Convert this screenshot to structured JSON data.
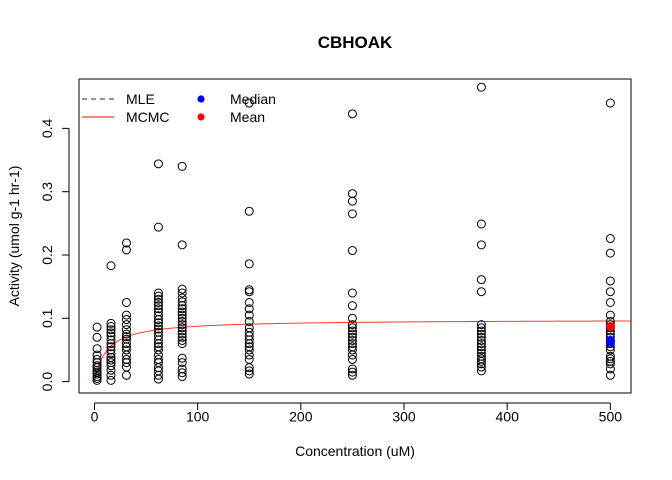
{
  "chart_data": {
    "type": "scatter",
    "title": "CBHOAK",
    "xlabel": "Concentration (uM)",
    "ylabel": "Activity (umol g-1 hr-1)",
    "xlim": [
      -15,
      520
    ],
    "ylim": [
      -0.018,
      0.478
    ],
    "x_ticks": [
      0,
      100,
      200,
      300,
      400,
      500
    ],
    "y_ticks": [
      0.0,
      0.1,
      0.2,
      0.3,
      0.4
    ],
    "x_tick_labels": [
      "0",
      "100",
      "200",
      "300",
      "400",
      "500"
    ],
    "y_tick_labels": [
      "0.0",
      "0.1",
      "0.2",
      "0.3",
      "0.4"
    ],
    "grid": false,
    "legend": {
      "position": "top-left",
      "entries": [
        {
          "label": "MLE",
          "symbol": "dashed-line",
          "color": "#555555"
        },
        {
          "label": "MCMC",
          "symbol": "line",
          "color": "#ff3b30"
        },
        {
          "label": "Median",
          "symbol": "filled-circle",
          "color": "#0000ff"
        },
        {
          "label": "Mean",
          "symbol": "filled-circle",
          "color": "#ff0000"
        }
      ]
    },
    "observations": [
      {
        "x": 2.5,
        "y": [
          0.002,
          0.005,
          0.008,
          0.012,
          0.015,
          0.018,
          0.022,
          0.025,
          0.03,
          0.035,
          0.042,
          0.052,
          0.07,
          0.086
        ]
      },
      {
        "x": 16,
        "y": [
          0.002,
          0.01,
          0.018,
          0.025,
          0.03,
          0.034,
          0.038,
          0.044,
          0.05,
          0.055,
          0.06,
          0.066,
          0.072,
          0.077,
          0.082,
          0.087,
          0.092,
          0.183
        ]
      },
      {
        "x": 31,
        "y": [
          0.01,
          0.023,
          0.03,
          0.035,
          0.042,
          0.05,
          0.055,
          0.06,
          0.067,
          0.071,
          0.075,
          0.082,
          0.09,
          0.098,
          0.105,
          0.125,
          0.208,
          0.219
        ]
      },
      {
        "x": 62,
        "y": [
          0.004,
          0.01,
          0.017,
          0.022,
          0.03,
          0.035,
          0.042,
          0.05,
          0.055,
          0.06,
          0.066,
          0.072,
          0.078,
          0.083,
          0.088,
          0.093,
          0.098,
          0.104,
          0.11,
          0.115,
          0.12,
          0.125,
          0.13,
          0.135,
          0.14,
          0.244,
          0.344
        ]
      },
      {
        "x": 85,
        "y": [
          0.008,
          0.014,
          0.02,
          0.03,
          0.037,
          0.06,
          0.065,
          0.07,
          0.075,
          0.08,
          0.085,
          0.09,
          0.095,
          0.1,
          0.105,
          0.11,
          0.115,
          0.12,
          0.126,
          0.132,
          0.14,
          0.146,
          0.216,
          0.34
        ]
      },
      {
        "x": 150,
        "y": [
          0.012,
          0.017,
          0.022,
          0.035,
          0.042,
          0.05,
          0.055,
          0.06,
          0.066,
          0.072,
          0.078,
          0.085,
          0.095,
          0.105,
          0.115,
          0.125,
          0.142,
          0.145,
          0.186,
          0.269,
          0.44
        ]
      },
      {
        "x": 250,
        "y": [
          0.01,
          0.015,
          0.02,
          0.035,
          0.042,
          0.05,
          0.055,
          0.06,
          0.065,
          0.07,
          0.075,
          0.08,
          0.085,
          0.09,
          0.1,
          0.12,
          0.14,
          0.207,
          0.265,
          0.285,
          0.297,
          0.423
        ]
      },
      {
        "x": 375,
        "y": [
          0.017,
          0.023,
          0.028,
          0.032,
          0.036,
          0.04,
          0.045,
          0.05,
          0.055,
          0.06,
          0.065,
          0.07,
          0.075,
          0.08,
          0.085,
          0.09,
          0.142,
          0.161,
          0.216,
          0.249,
          0.465
        ]
      },
      {
        "x": 500,
        "y": [
          0.01,
          0.02,
          0.028,
          0.032,
          0.036,
          0.04,
          0.05,
          0.055,
          0.06,
          0.065,
          0.07,
          0.075,
          0.08,
          0.085,
          0.09,
          0.095,
          0.105,
          0.125,
          0.142,
          0.159,
          0.203,
          0.226,
          0.44
        ]
      }
    ],
    "summary_points": [
      {
        "name": "Median",
        "color": "#0000ff",
        "points": [
          {
            "x": 500,
            "y": 0.062
          },
          {
            "x": 500,
            "y": 0.065
          }
        ]
      },
      {
        "name": "Mean",
        "color": "#ff0000",
        "points": [
          {
            "x": 500,
            "y": 0.087
          }
        ]
      }
    ],
    "fit_curves": [
      {
        "name": "MCMC",
        "color": "#ff3b30",
        "model": "michaelis-menten",
        "vmax": 0.098,
        "km": 12,
        "x_range": [
          0,
          520
        ]
      }
    ]
  }
}
